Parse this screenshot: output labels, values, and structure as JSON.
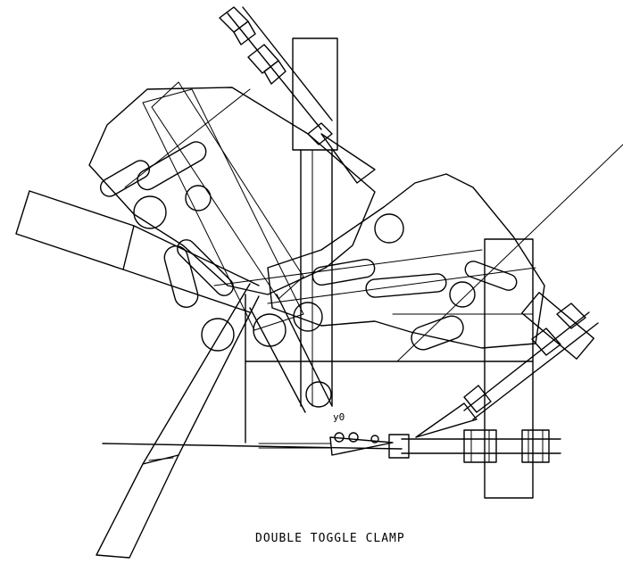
{
  "title": "DOUBLE TOGGLE CLAMP",
  "angle_label": "y0",
  "colors": {
    "line": "#000000",
    "background": "#ffffff"
  }
}
